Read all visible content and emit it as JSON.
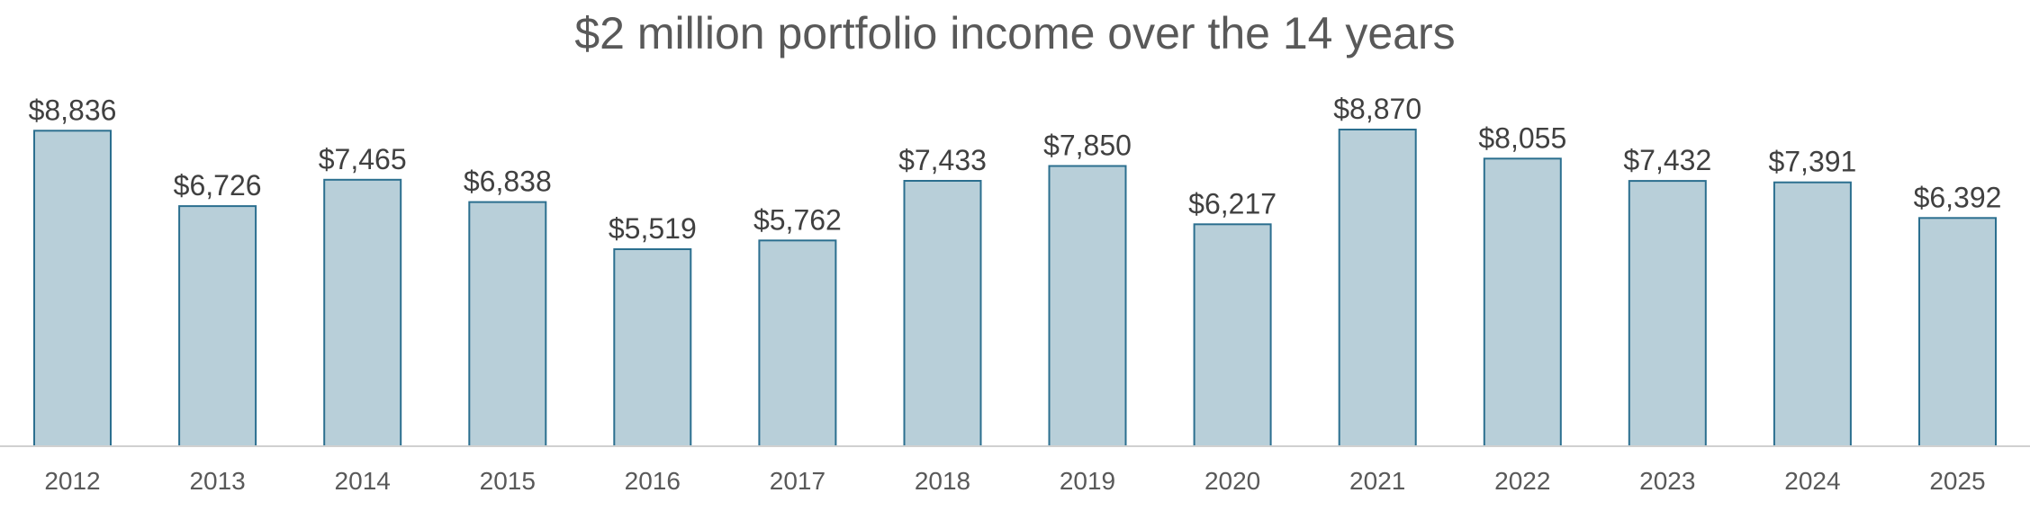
{
  "chart_data": {
    "type": "bar",
    "title": "$2 million portfolio income over the 14 years",
    "xlabel": "",
    "ylabel": "",
    "categories": [
      "2012",
      "2013",
      "2014",
      "2015",
      "2016",
      "2017",
      "2018",
      "2019",
      "2020",
      "2021",
      "2022",
      "2023",
      "2024",
      "2025"
    ],
    "values": [
      8836,
      6726,
      7465,
      6838,
      5519,
      5762,
      7433,
      7850,
      6217,
      8870,
      8055,
      7432,
      7391,
      6392
    ],
    "data_labels": [
      "$8,836",
      "$6,726",
      "$7,465",
      "$6,838",
      "$5,519",
      "$5,762",
      "$7,433",
      "$7,850",
      "$6,217",
      "$8,870",
      "$8,055",
      "$7,432",
      "$7,391",
      "$6,392"
    ],
    "ylim": [
      0,
      10000
    ],
    "grid": false,
    "legend": "none",
    "colors": {
      "bar_fill": "#b8cfd9",
      "bar_stroke": "#2b6f8f",
      "title": "#595959",
      "label": "#404040",
      "axis": "#d0d0d0"
    }
  }
}
